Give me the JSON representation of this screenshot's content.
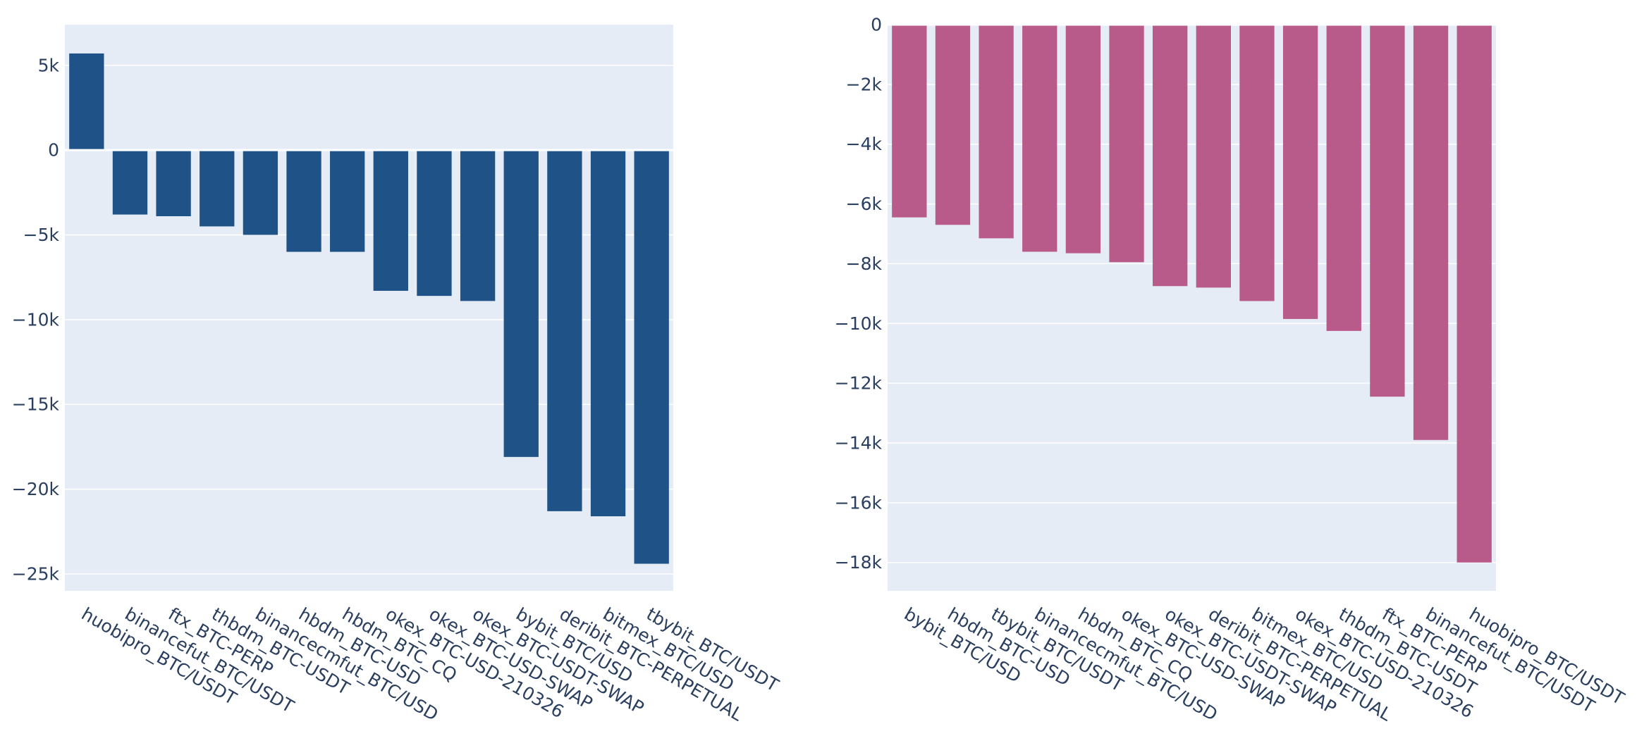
{
  "chart_data": [
    {
      "type": "bar",
      "title": "",
      "xlabel": "",
      "ylabel": "",
      "color": "#1f5287",
      "ylim": [
        -26000,
        7400
      ],
      "yticks": [
        5000,
        0,
        -5000,
        -10000,
        -15000,
        -20000,
        -25000
      ],
      "ytick_labels": [
        "5k",
        "0",
        "−5k",
        "−10k",
        "−15k",
        "−20k",
        "−25k"
      ],
      "categories": [
        "huobipro_BTC/USDT",
        "binancefut_BTC/USDT",
        "ftx_BTC-PERP",
        "thbdm_BTC-USDT",
        "binancecmfut_BTC/USD",
        "hbdm_BTC-USD",
        "hbdm_BTC_CQ",
        "okex_BTC-USD-210326",
        "okex_BTC-USD-SWAP",
        "okex_BTC-USDT-SWAP",
        "bybit_BTC/USD",
        "deribit_BTC-PERPETUAL",
        "bitmex_BTC/USD",
        "tbybit_BTC/USDT"
      ],
      "values": [
        5700,
        -3800,
        -3900,
        -4500,
        -5000,
        -6000,
        -6000,
        -8300,
        -8600,
        -8900,
        -18100,
        -21300,
        -21600,
        -24400
      ]
    },
    {
      "type": "bar",
      "title": "",
      "xlabel": "",
      "ylabel": "",
      "color": "#b85a8a",
      "ylim": [
        -18950,
        0
      ],
      "yticks": [
        0,
        -2000,
        -4000,
        -6000,
        -8000,
        -10000,
        -12000,
        -14000,
        -16000,
        -18000
      ],
      "ytick_labels": [
        "0",
        "−2k",
        "−4k",
        "−6k",
        "−8k",
        "−10k",
        "−12k",
        "−14k",
        "−16k",
        "−18k"
      ],
      "categories": [
        "bybit_BTC/USD",
        "hbdm_BTC-USD",
        "tbybit_BTC/USDT",
        "binancecmfut_BTC/USD",
        "hbdm_BTC_CQ",
        "okex_BTC-USD-SWAP",
        "okex_BTC-USDT-SWAP",
        "deribit_BTC-PERPETUAL",
        "bitmex_BTC/USD",
        "okex_BTC-USD-210326",
        "thbdm_BTC-USDT",
        "ftx_BTC-PERP",
        "binancefut_BTC/USDT",
        "huobipro_BTC/USDT"
      ],
      "values": [
        -6450,
        -6700,
        -7150,
        -7600,
        -7650,
        -7950,
        -8750,
        -8800,
        -9250,
        -9850,
        -10250,
        -12450,
        -13900,
        -18000
      ]
    }
  ]
}
